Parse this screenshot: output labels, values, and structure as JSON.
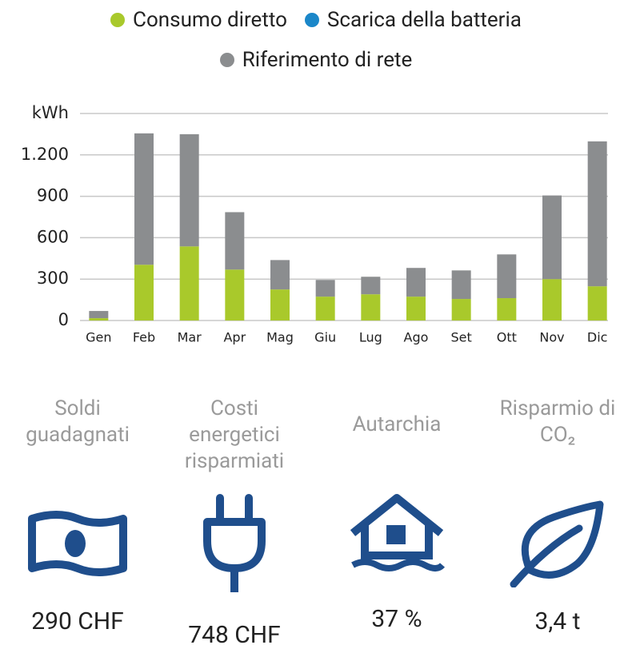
{
  "chart_data": {
    "type": "stacked_bar",
    "series": [
      {
        "name": "Consumo diretto",
        "color": "#a9c92b",
        "values": [
          17,
          404,
          537,
          369,
          225,
          173,
          190,
          173,
          156,
          162,
          300,
          248
        ]
      },
      {
        "name": "Scarica della batteria",
        "color": "#1b87c9",
        "values": [
          0,
          0,
          0,
          0,
          0,
          0,
          0,
          0,
          0,
          0,
          0,
          0
        ]
      },
      {
        "name": "Riferimento di rete",
        "color": "#8b8d8f",
        "values": [
          52,
          952,
          813,
          416,
          213,
          121,
          127,
          208,
          207,
          317,
          606,
          1050
        ]
      }
    ],
    "categories": [
      "Gen",
      "Feb",
      "Mar",
      "Apr",
      "Mag",
      "Giu",
      "Lug",
      "Ago",
      "Set",
      "Ott",
      "Nov",
      "Dic"
    ],
    "ylim": [
      0,
      1500
    ],
    "yticks": [
      0,
      300,
      600,
      900,
      {
        "value": 1200,
        "label": "1.200"
      },
      {
        "value": 1500,
        "label": "kWh"
      }
    ],
    "grid": true
  },
  "stats": [
    {
      "label": "Soldi guadagnati",
      "value": "290 CHF"
    },
    {
      "label": "Costi energetici risparmiati",
      "value": "748 CHF"
    },
    {
      "label": "Autarchia",
      "value": "37 %"
    },
    {
      "label": "Risparmio di CO₂",
      "value": "3,4 t"
    }
  ]
}
